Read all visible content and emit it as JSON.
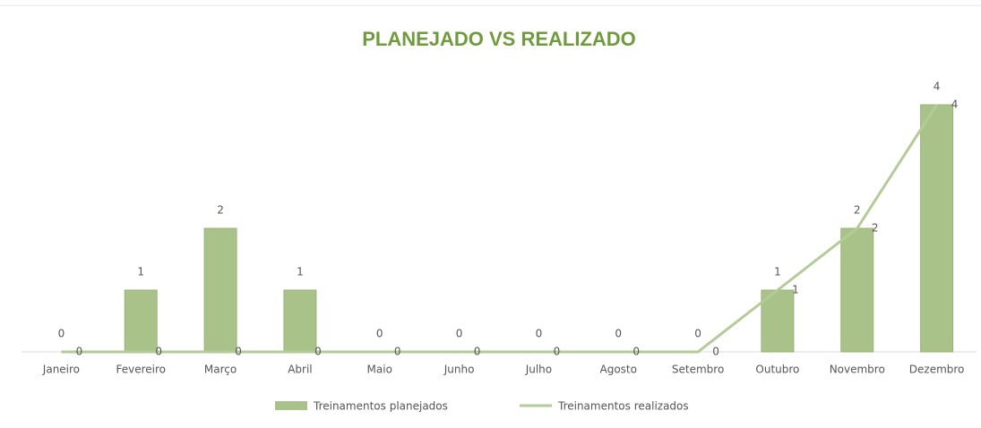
{
  "chart_data": {
    "type": "combo",
    "title": "PLANEJADO VS REALIZADO",
    "categories": [
      "Janeiro",
      "Fevereiro",
      "Março",
      "Abril",
      "Maio",
      "Junho",
      "Julho",
      "Agosto",
      "Setembro",
      "Outubro",
      "Novembro",
      "Dezembro"
    ],
    "series": [
      {
        "name": "Treinamentos planejados",
        "type": "bar",
        "color": "#a9c28a",
        "values": [
          0,
          1,
          2,
          1,
          0,
          0,
          0,
          0,
          0,
          1,
          2,
          4
        ]
      },
      {
        "name": "Treinamentos realizados",
        "type": "line",
        "color": "#b3cb96",
        "values": [
          0,
          0,
          0,
          0,
          0,
          0,
          0,
          0,
          0,
          1,
          2,
          4
        ]
      }
    ]
  }
}
